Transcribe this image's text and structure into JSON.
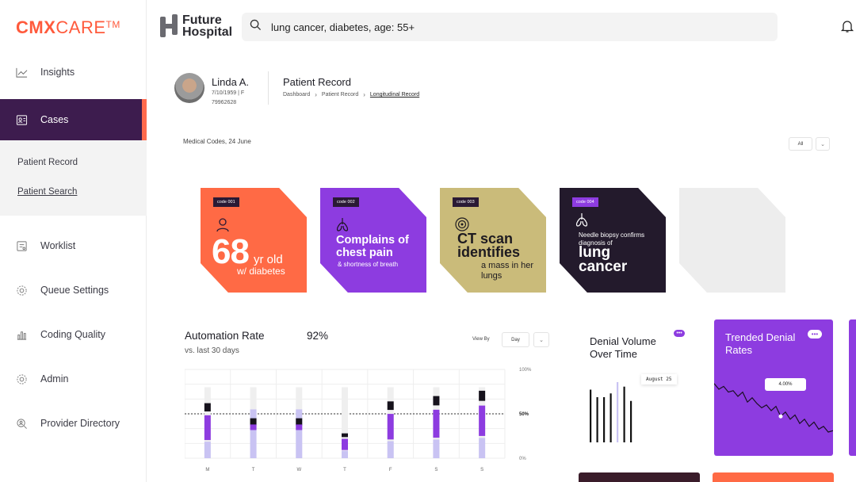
{
  "brand": {
    "name_bold": "CMX",
    "name_light": "CARE",
    "tm": "TM",
    "color": "#ff5a3c"
  },
  "logo": {
    "line1": "Future",
    "line2": "Hospital"
  },
  "search": {
    "value": "lung cancer, diabetes, age: 55+",
    "icon": "search-icon"
  },
  "sidebar": {
    "items": [
      {
        "label": "Insights",
        "icon": "chart-line-icon"
      },
      {
        "label": "Cases",
        "icon": "id-card-icon",
        "active": true
      },
      {
        "label": "Worklist",
        "icon": "worklist-icon"
      },
      {
        "label": "Queue Settings",
        "icon": "gear-icon"
      },
      {
        "label": "Coding Quality",
        "icon": "bar-chart-icon"
      },
      {
        "label": "Admin",
        "icon": "settings-icon"
      },
      {
        "label": "Provider Directory",
        "icon": "search-person-icon"
      }
    ],
    "sub_items": [
      {
        "label": "Patient Record"
      },
      {
        "label": "Patient Search"
      }
    ]
  },
  "patient": {
    "name": "Linda A.",
    "dob_sex": "7/10/1959 | F",
    "id": "79962628"
  },
  "record": {
    "title": "Patient Record",
    "breadcrumbs": [
      "Dashboard",
      "Patient Record",
      "Longitudinal Record"
    ]
  },
  "codes": {
    "label": "Medical Codes, 24 June",
    "filter": "All",
    "cards": [
      {
        "tag": "code 001",
        "big": "68",
        "mid": "yr old",
        "small": "w/ diabetes",
        "color": "#ff6a45"
      },
      {
        "tag": "code 002",
        "headline": "Complains of chest pain",
        "small": "& shortness of breath",
        "color": "#8d3ce0"
      },
      {
        "tag": "code 003",
        "headline": "CT scan identifies",
        "small": "a mass in her lungs",
        "color": "#cabb7a"
      },
      {
        "tag": "code 004",
        "small": "Needle biopsy confirms diagnosis of",
        "headline": "lung cancer",
        "color": "#231a2c"
      }
    ]
  },
  "automation": {
    "title": "Automation Rate",
    "subtitle": "vs. last 30 days",
    "value": "92%",
    "view_by_label": "View By",
    "view_by_value": "Day"
  },
  "chart_data": [
    {
      "type": "bar",
      "categories": [
        "M",
        "T",
        "W",
        "T",
        "F",
        "S",
        "S"
      ],
      "y_tick_labels": [
        "100%",
        "50%",
        "0%"
      ],
      "reference_line": 50,
      "series": [
        {
          "values": [
            62,
            0,
            0,
            28,
            64,
            70,
            76
          ]
        }
      ],
      "colors": {
        "primary": "#8d3ce0",
        "light": "#c9c3f3",
        "dark": "#16121c",
        "ghost": "#efefef"
      }
    },
    {
      "type": "bar",
      "title": "Denial Volume Over Time",
      "annotation": "August 25",
      "values": [
        70,
        55,
        60,
        55,
        60,
        70,
        65,
        72,
        80,
        60,
        74,
        62,
        55,
        75
      ]
    },
    {
      "type": "line",
      "title": "Trended Denial Rates",
      "annotation": "4.00%",
      "values": [
        12,
        20,
        16,
        24,
        22,
        30,
        24,
        38,
        32,
        40,
        46,
        42,
        50,
        44,
        58,
        52,
        62,
        56,
        68,
        62,
        72,
        66,
        76,
        72,
        80,
        78
      ]
    }
  ],
  "denial_volume": {
    "title": "Denial Volume Over Time",
    "tooltip": "August 25",
    "menu": "•••"
  },
  "trended": {
    "title": "Trended Denial Rates",
    "tooltip": "4.00%",
    "menu": "•••"
  }
}
